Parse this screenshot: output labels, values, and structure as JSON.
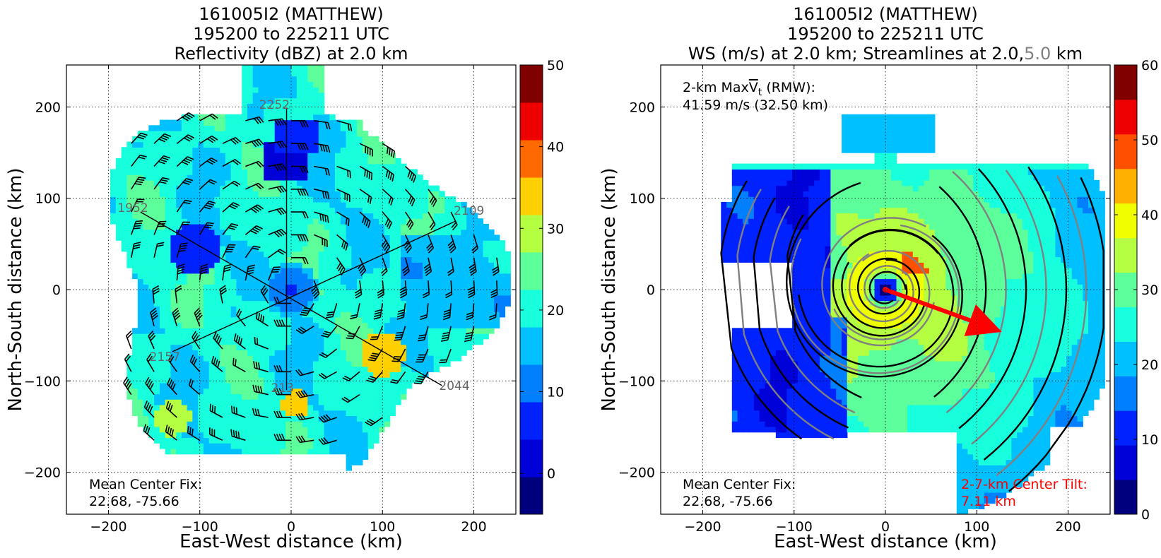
{
  "chart_data": [
    {
      "type": "heatmap",
      "title_lines": [
        "161005I2 (MATTHEW)",
        "195200 to 225211 UTC",
        "Reflectivity (dBZ) at 2.0 km"
      ],
      "xlabel": "East-West distance (km)",
      "ylabel": "North-South distance (km)",
      "xlim": [
        -246,
        246
      ],
      "ylim": [
        -246,
        246
      ],
      "xticks": [
        -200,
        -100,
        0,
        100,
        200
      ],
      "yticks": [
        -200,
        -100,
        0,
        100,
        200
      ],
      "xtick_labels": [
        "−200",
        "−100",
        "0",
        "100",
        "200"
      ],
      "ytick_labels": [
        "−200",
        "−100",
        "0",
        "100",
        "200"
      ],
      "grid": true,
      "colorbar": {
        "min": -5,
        "max": 50,
        "levels": [
          -5,
          0,
          5,
          10,
          15,
          20,
          25,
          30,
          35,
          40,
          45,
          50
        ],
        "colors": [
          "#00007f",
          "#0000d8",
          "#0022ff",
          "#0080ff",
          "#00c0ff",
          "#18ffdd",
          "#5cff9a",
          "#b4ff42",
          "#ffd000",
          "#ff6a00",
          "#ee0000",
          "#800000"
        ],
        "ticks": [
          0,
          10,
          20,
          30,
          40,
          50
        ],
        "tick_labels": [
          "0",
          "10",
          "20",
          "30",
          "40",
          "50"
        ]
      },
      "flight_legs": [
        {
          "label": "1952",
          "from": [
            -165,
            85
          ],
          "to": [
            165,
            -105
          ]
        },
        {
          "label": "2109",
          "from": [
            -130,
            -68
          ],
          "to": [
            180,
            75
          ]
        },
        {
          "label": "2252",
          "from": [
            -5,
            198
          ],
          "to": [
            -5,
            -110
          ]
        }
      ],
      "leg_end_labels": [
        {
          "text": "1952",
          "x": -190,
          "y": 85
        },
        {
          "text": "2109",
          "x": 178,
          "y": 82
        },
        {
          "text": "2252",
          "x": -35,
          "y": 198
        },
        {
          "text": "2044",
          "x": 162,
          "y": -110
        },
        {
          "text": "2157",
          "x": -155,
          "y": -78
        },
        {
          "text": "213",
          "x": -22,
          "y": -112
        }
      ],
      "annotation": "Mean Center Fix:\n22.68, -75.66",
      "annotation_lines": [
        "Mean Center Fix:",
        "22.68, -75.66"
      ]
    },
    {
      "type": "heatmap",
      "title_lines": [
        "161005I2 (MATTHEW)",
        "195200 to 225211 UTC"
      ],
      "title_line3_parts": [
        "WS (m/s) at 2.0 km; Streamlines at 2.0,",
        "5.0",
        " km"
      ],
      "title_line3_colors": [
        "#000000",
        "#808080",
        "#000000"
      ],
      "xlabel": "East-West distance (km)",
      "ylabel": "North-South distance (km)",
      "xlim": [
        -246,
        246
      ],
      "ylim": [
        -246,
        246
      ],
      "xticks": [
        -200,
        -100,
        0,
        100,
        200
      ],
      "yticks": [
        -200,
        -100,
        0,
        100,
        200
      ],
      "xtick_labels": [
        "−200",
        "−100",
        "0",
        "100",
        "200"
      ],
      "ytick_labels": [
        "−200",
        "−100",
        "0",
        "100",
        "200"
      ],
      "grid": true,
      "colorbar": {
        "min": 0,
        "max": 60,
        "levels": [
          0,
          5,
          10,
          15,
          20,
          25,
          30,
          35,
          40,
          45,
          50,
          55,
          60
        ],
        "colors": [
          "#00007f",
          "#0000d8",
          "#0022ff",
          "#0080ff",
          "#00c0ff",
          "#18ffdd",
          "#5cff9a",
          "#b4ff42",
          "#f0ff00",
          "#ffb000",
          "#ff5000",
          "#ee0000",
          "#800000"
        ],
        "ticks": [
          0,
          10,
          20,
          30,
          40,
          50,
          60
        ],
        "tick_labels": [
          "0",
          "10",
          "20",
          "30",
          "40",
          "50",
          "60"
        ]
      },
      "max_wind_label_pre": "2-km Max",
      "max_wind_label_sym": "V",
      "max_wind_label_sub": "t",
      "max_wind_label_post": " (RMW):",
      "max_wind_value": "41.59 m/s (32.50 km)",
      "tilt_vector": {
        "from": [
          0,
          0
        ],
        "to": [
          110,
          -40
        ],
        "color": "#ff0000"
      },
      "annotation_lines": [
        "Mean Center Fix:",
        "22.68, -75.66"
      ],
      "tilt_lines": [
        "2-7-km Center Tilt:",
        "7.11 km"
      ],
      "tilt_color": "#ff0000"
    }
  ]
}
